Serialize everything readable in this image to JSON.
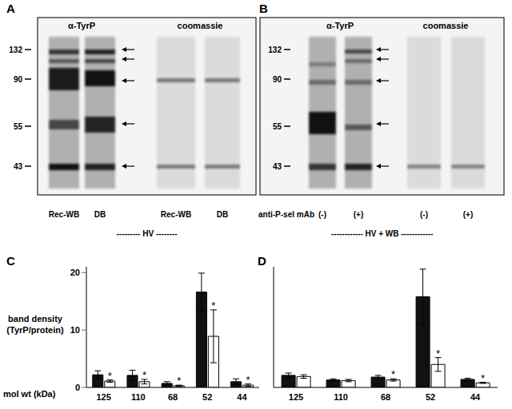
{
  "blots": [
    {
      "panel": "A",
      "markers": [
        132,
        90,
        55,
        43
      ],
      "headers": [
        "α-TyrP",
        "coomassie"
      ],
      "lanes": [
        "Rec-WB",
        "DB",
        "Rec-WB",
        "DB"
      ],
      "group": "--------- HV --------"
    },
    {
      "panel": "B",
      "markers": [
        132,
        90,
        55,
        43
      ],
      "headers": [
        "α-TyrP",
        "coomassie"
      ],
      "row_label": "anti-P-sel mAb",
      "lanes": [
        "(-)",
        "(+)",
        "(-)",
        "(+)"
      ],
      "group": "------------ HV + WB ------------"
    }
  ],
  "chart_data": [
    {
      "panel": "C",
      "type": "bar",
      "ylabel": "band density (TyrP/protein)",
      "xlabel": "mol wt (kDa)",
      "categories": [
        "125",
        "110",
        "68",
        "52",
        "44"
      ],
      "series": [
        {
          "color": "#111111",
          "values": [
            2.2,
            2.1,
            0.7,
            16.6,
            1.0
          ],
          "errors": [
            0.7,
            0.9,
            0.3,
            3.3,
            0.5
          ]
        },
        {
          "color": "#ffffff",
          "values": [
            1.1,
            1.0,
            0.3,
            8.9,
            0.4
          ],
          "errors": [
            0.2,
            0.4,
            0.1,
            4.6,
            0.2
          ],
          "annotations": [
            "*",
            "*",
            "*",
            "*",
            "*"
          ]
        }
      ],
      "ylim": [
        0,
        21
      ],
      "yticks": [
        0,
        10,
        20
      ]
    },
    {
      "panel": "D",
      "type": "bar",
      "categories": [
        "125",
        "110",
        "68",
        "52",
        "44"
      ],
      "series": [
        {
          "color": "#111111",
          "values": [
            2.1,
            1.3,
            1.8,
            15.8,
            1.4
          ],
          "errors": [
            0.4,
            0.2,
            0.3,
            4.8,
            0.2
          ]
        },
        {
          "color": "#ffffff",
          "values": [
            1.9,
            1.2,
            1.3,
            4.0,
            0.8
          ],
          "errors": [
            0.3,
            0.2,
            0.2,
            1.2,
            0.1
          ],
          "annotations": [
            null,
            null,
            "*",
            "*",
            "*"
          ]
        }
      ],
      "ylim": [
        0,
        21
      ],
      "tick_labels": "x"
    }
  ]
}
